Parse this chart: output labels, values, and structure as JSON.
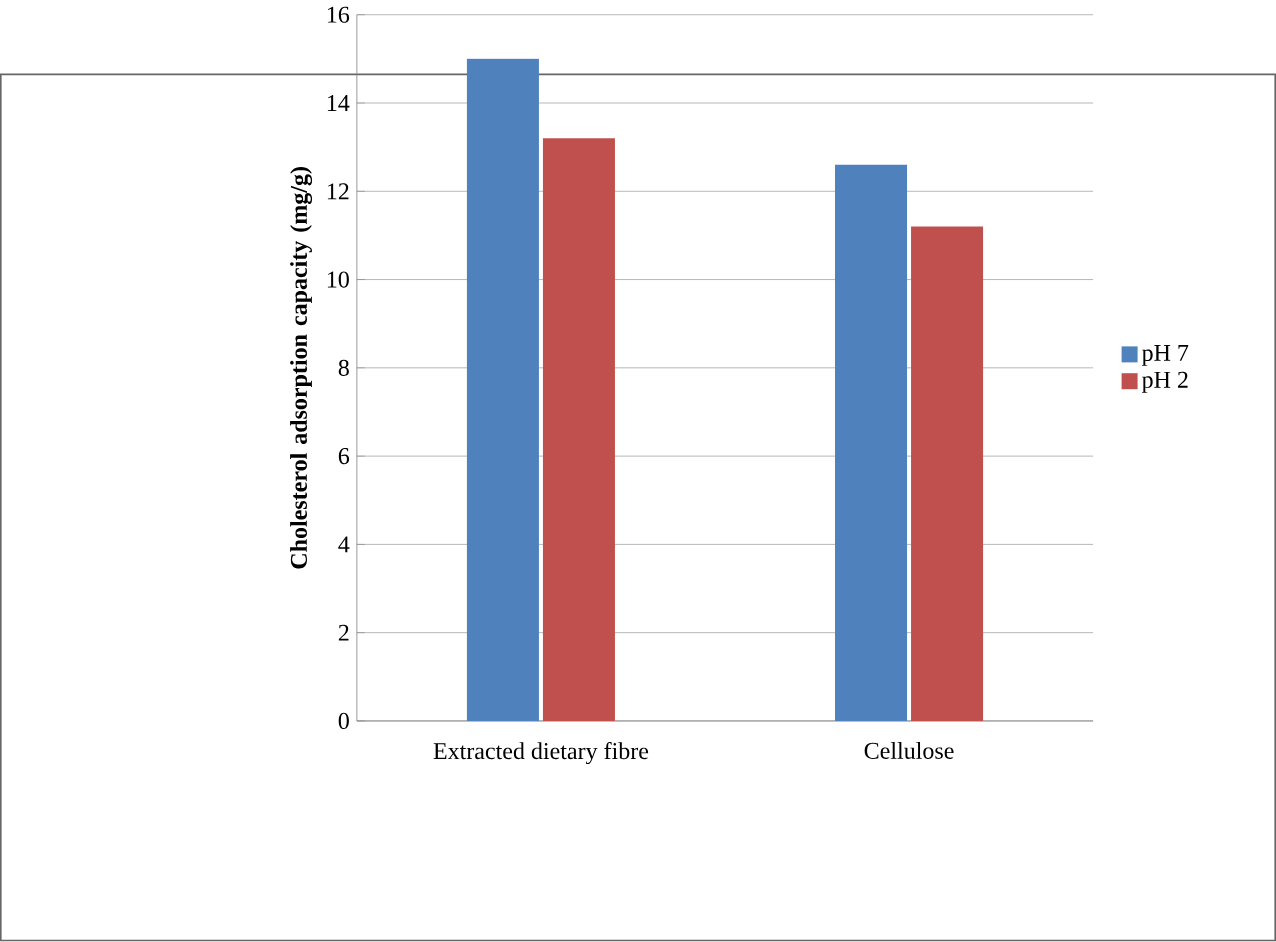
{
  "chart_data": {
    "type": "bar",
    "ylabel": "Cholesterol  adsorption capacity (mg/g)",
    "categories": [
      "Extracted dietary fibre",
      "Cellulose"
    ],
    "series": [
      {
        "name": "pH 7",
        "color": "#4f81bd",
        "values": [
          15.0,
          12.6
        ]
      },
      {
        "name": "pH 2",
        "color": "#c0504d",
        "values": [
          13.2,
          11.2
        ]
      }
    ],
    "ylim": [
      0,
      16
    ],
    "yticks": [
      0,
      2,
      4,
      6,
      8,
      10,
      12,
      14,
      16
    ],
    "grid": "y",
    "legend": "right"
  }
}
